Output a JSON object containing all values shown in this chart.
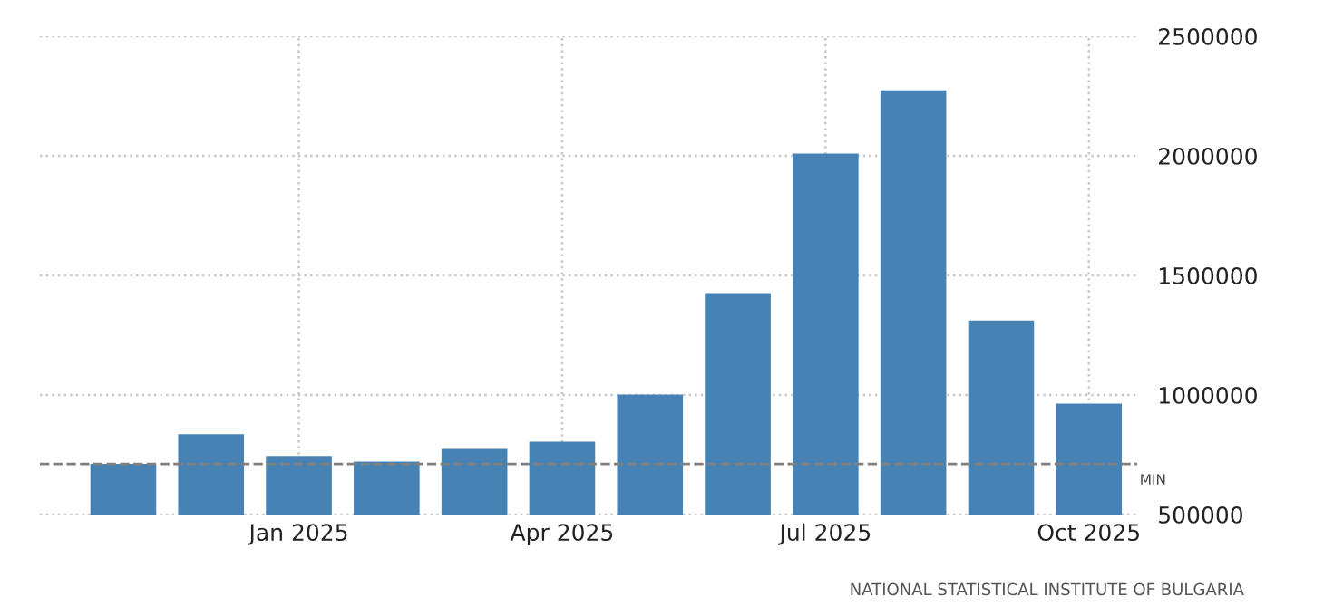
{
  "chart_data": {
    "type": "bar",
    "categories": [
      null,
      null,
      "Jan 2025",
      null,
      null,
      "Apr 2025",
      null,
      null,
      "Jul 2025",
      null,
      null,
      "Oct 2025"
    ],
    "values": [
      712000,
      836000,
      745000,
      722000,
      775000,
      805000,
      1002000,
      1426000,
      2009000,
      2274000,
      1312000,
      964000
    ],
    "color": "#4682b4",
    "ylim": [
      500000,
      2500000
    ],
    "yticks": [
      500000,
      1000000,
      1500000,
      2000000,
      2500000
    ],
    "grid": true,
    "ref_lines": [
      {
        "axis": "y",
        "value": 712000,
        "label": "MIN",
        "color": "#7f7f7f",
        "line_style": "dashed"
      }
    ],
    "annotations": [
      "NATIONAL STATISTICAL INSTITUTE OF BULGARIA"
    ]
  }
}
